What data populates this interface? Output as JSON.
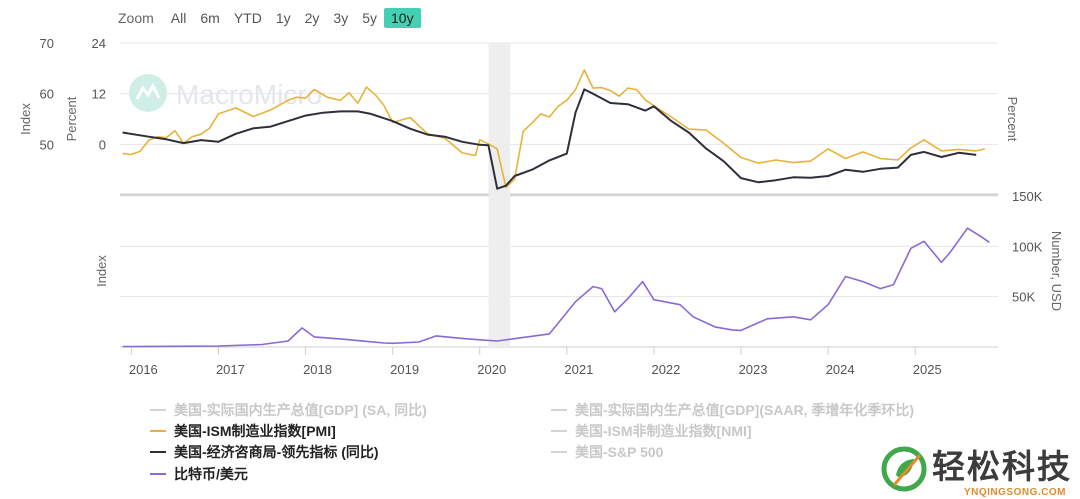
{
  "zoom": {
    "label": "Zoom",
    "buttons": [
      "All",
      "6m",
      "YTD",
      "1y",
      "2y",
      "3y",
      "5y",
      "10y"
    ],
    "active": "10y"
  },
  "watermark": "MacroMicro",
  "brand": {
    "name": "轻松科技",
    "sub": "YNQINGSONG.COM"
  },
  "colors": {
    "pmi": "#e8b33a",
    "lei": "#2d2f3a",
    "btc": "#8b69d4",
    "accent": "#44d1b3",
    "dim": "#d4d4d4"
  },
  "legend": [
    {
      "label": "美国-实际国内生产总值[GDP] (SA, 同比)",
      "color": "#d4d4d4",
      "active": false
    },
    {
      "label": "美国-实际国内生产总值[GDP](SAAR, 季增年化季环比)",
      "color": "#d4d4d4",
      "active": false
    },
    {
      "label": "美国-ISM制造业指数[PMI]",
      "color": "#e8b33a",
      "active": true
    },
    {
      "label": "美国-ISM非制造业指数[NMI]",
      "color": "#d4d4d4",
      "active": false
    },
    {
      "label": "美国-经济咨商局-领先指标 (同比)",
      "color": "#2d2f3a",
      "active": true
    },
    {
      "label": "美国-S&P 500",
      "color": "#d4d4d4",
      "active": false
    },
    {
      "label": "比特币/美元",
      "color": "#8b69d4",
      "active": true
    }
  ],
  "chart_data": [
    {
      "type": "line",
      "panel": "top",
      "x_axis": {
        "ticks": [
          "2016",
          "2017",
          "2018",
          "2019",
          "2020",
          "2021",
          "2022",
          "2023",
          "2024",
          "2025"
        ]
      },
      "axes": {
        "index_left": {
          "label": "Index",
          "ticks": [
            "50",
            "60",
            "70"
          ],
          "range": [
            40,
            70
          ]
        },
        "percent_left": {
          "label": "Percent",
          "ticks": [
            "0",
            "12",
            "24"
          ],
          "range": [
            -12,
            24
          ]
        },
        "percent_right": {
          "label": "Percent"
        }
      },
      "shaded_period": [
        "2020-02",
        "2020-04"
      ],
      "series": [
        {
          "name": "美国-ISM制造业指数[PMI]",
          "axis": "index_left",
          "x": [
            2015.9,
            2016.0,
            2016.1,
            2016.2,
            2016.3,
            2016.4,
            2016.5,
            2016.6,
            2016.7,
            2016.8,
            2016.9,
            2017.0,
            2017.2,
            2017.4,
            2017.6,
            2017.8,
            2017.9,
            2018.0,
            2018.1,
            2018.25,
            2018.4,
            2018.5,
            2018.6,
            2018.7,
            2018.8,
            2018.9,
            2019.0,
            2019.2,
            2019.4,
            2019.6,
            2019.8,
            2019.95,
            2020.0,
            2020.1,
            2020.2,
            2020.3,
            2020.4,
            2020.5,
            2020.6,
            2020.7,
            2020.8,
            2020.9,
            2021.0,
            2021.1,
            2021.2,
            2021.3,
            2021.4,
            2021.5,
            2021.6,
            2021.7,
            2021.8,
            2021.9,
            2022.0,
            2022.2,
            2022.4,
            2022.6,
            2022.8,
            2023.0,
            2023.2,
            2023.4,
            2023.6,
            2023.8,
            2024.0,
            2024.2,
            2024.4,
            2024.6,
            2024.8,
            2024.95,
            2025.1,
            2025.3,
            2025.5,
            2025.7,
            2025.8
          ],
          "values": [
            48.2,
            48.0,
            48.6,
            50.8,
            51.5,
            51.3,
            52.7,
            50.2,
            51.5,
            52.0,
            53.2,
            56.0,
            57.2,
            55.5,
            56.8,
            58.7,
            59.3,
            59.1,
            60.8,
            59.3,
            58.7,
            60.2,
            58.1,
            61.3,
            59.8,
            57.7,
            54.3,
            55.3,
            52.1,
            51.2,
            48.3,
            47.8,
            50.9,
            50.1,
            49.1,
            41.5,
            43.1,
            52.6,
            54.2,
            56.0,
            55.4,
            57.5,
            58.7,
            60.8,
            64.7,
            61.1,
            61.2,
            60.6,
            59.5,
            61.1,
            60.8,
            58.8,
            57.6,
            55.4,
            53.0,
            52.8,
            50.2,
            47.4,
            46.3,
            46.9,
            46.4,
            46.7,
            49.1,
            47.2,
            48.5,
            47.2,
            46.9,
            49.3,
            50.9,
            48.7,
            49.0,
            48.7,
            49.1
          ]
        },
        {
          "name": "美国-经济咨商局-领先指标 (同比)",
          "axis": "percent_left",
          "x": [
            2015.9,
            2016.2,
            2016.4,
            2016.6,
            2016.8,
            2017.0,
            2017.2,
            2017.4,
            2017.6,
            2017.8,
            2018.0,
            2018.2,
            2018.4,
            2018.6,
            2018.75,
            2019.0,
            2019.2,
            2019.4,
            2019.6,
            2019.8,
            2020.0,
            2020.1,
            2020.2,
            2020.3,
            2020.4,
            2020.6,
            2020.8,
            2021.0,
            2021.1,
            2021.2,
            2021.3,
            2021.5,
            2021.7,
            2021.9,
            2022.0,
            2022.2,
            2022.4,
            2022.6,
            2022.8,
            2023.0,
            2023.2,
            2023.4,
            2023.6,
            2023.8,
            2024.0,
            2024.2,
            2024.4,
            2024.6,
            2024.8,
            2024.95,
            2025.1,
            2025.3,
            2025.5,
            2025.7
          ],
          "values": [
            2.8,
            1.8,
            1.2,
            0.3,
            1.0,
            0.6,
            2.5,
            3.8,
            4.2,
            5.5,
            6.8,
            7.5,
            7.8,
            7.8,
            7.2,
            5.5,
            3.7,
            2.3,
            1.8,
            0.6,
            -0.1,
            -0.2,
            -10.5,
            -9.8,
            -7.5,
            -6.0,
            -3.8,
            -2.2,
            7.5,
            13.0,
            12.0,
            9.8,
            9.5,
            8.0,
            9.0,
            5.5,
            2.8,
            -1.0,
            -4.0,
            -8.0,
            -9.0,
            -8.5,
            -7.8,
            -7.9,
            -7.5,
            -6.0,
            -6.5,
            -5.8,
            -5.5,
            -2.5,
            -1.8,
            -3.0,
            -2.0,
            -2.5
          ]
        }
      ]
    },
    {
      "type": "line",
      "panel": "bottom",
      "x_axis": {
        "ticks": [
          "2016",
          "2017",
          "2018",
          "2019",
          "2020",
          "2021",
          "2022",
          "2023",
          "2024",
          "2025"
        ]
      },
      "axes": {
        "index_left": {
          "label": "Index"
        },
        "number_right": {
          "label": "Number, USD",
          "ticks": [
            "50K",
            "100K",
            "150K"
          ],
          "range": [
            0,
            150000
          ]
        }
      },
      "series": [
        {
          "name": "比特币/美元",
          "axis": "number_right",
          "x": [
            2015.9,
            2016.5,
            2017.0,
            2017.5,
            2017.8,
            2017.96,
            2018.1,
            2018.4,
            2018.9,
            2019.0,
            2019.3,
            2019.5,
            2019.8,
            2020.0,
            2020.2,
            2020.5,
            2020.8,
            2020.95,
            2021.1,
            2021.3,
            2021.4,
            2021.55,
            2021.7,
            2021.87,
            2022.0,
            2022.3,
            2022.45,
            2022.7,
            2022.9,
            2023.0,
            2023.3,
            2023.6,
            2023.8,
            2024.0,
            2024.2,
            2024.4,
            2024.6,
            2024.75,
            2024.95,
            2025.1,
            2025.3,
            2025.4,
            2025.6,
            2025.75,
            2025.85
          ],
          "values": [
            400,
            650,
            1000,
            2500,
            6000,
            19000,
            10000,
            8000,
            4000,
            3700,
            5000,
            11000,
            8500,
            7200,
            6000,
            9500,
            13000,
            29000,
            45000,
            60000,
            58000,
            35000,
            48000,
            65000,
            47000,
            42000,
            30000,
            20000,
            17000,
            16500,
            28000,
            30000,
            27000,
            42000,
            70000,
            65000,
            58000,
            62000,
            98000,
            105000,
            84000,
            94000,
            118000,
            110000,
            104000
          ]
        }
      ]
    }
  ]
}
